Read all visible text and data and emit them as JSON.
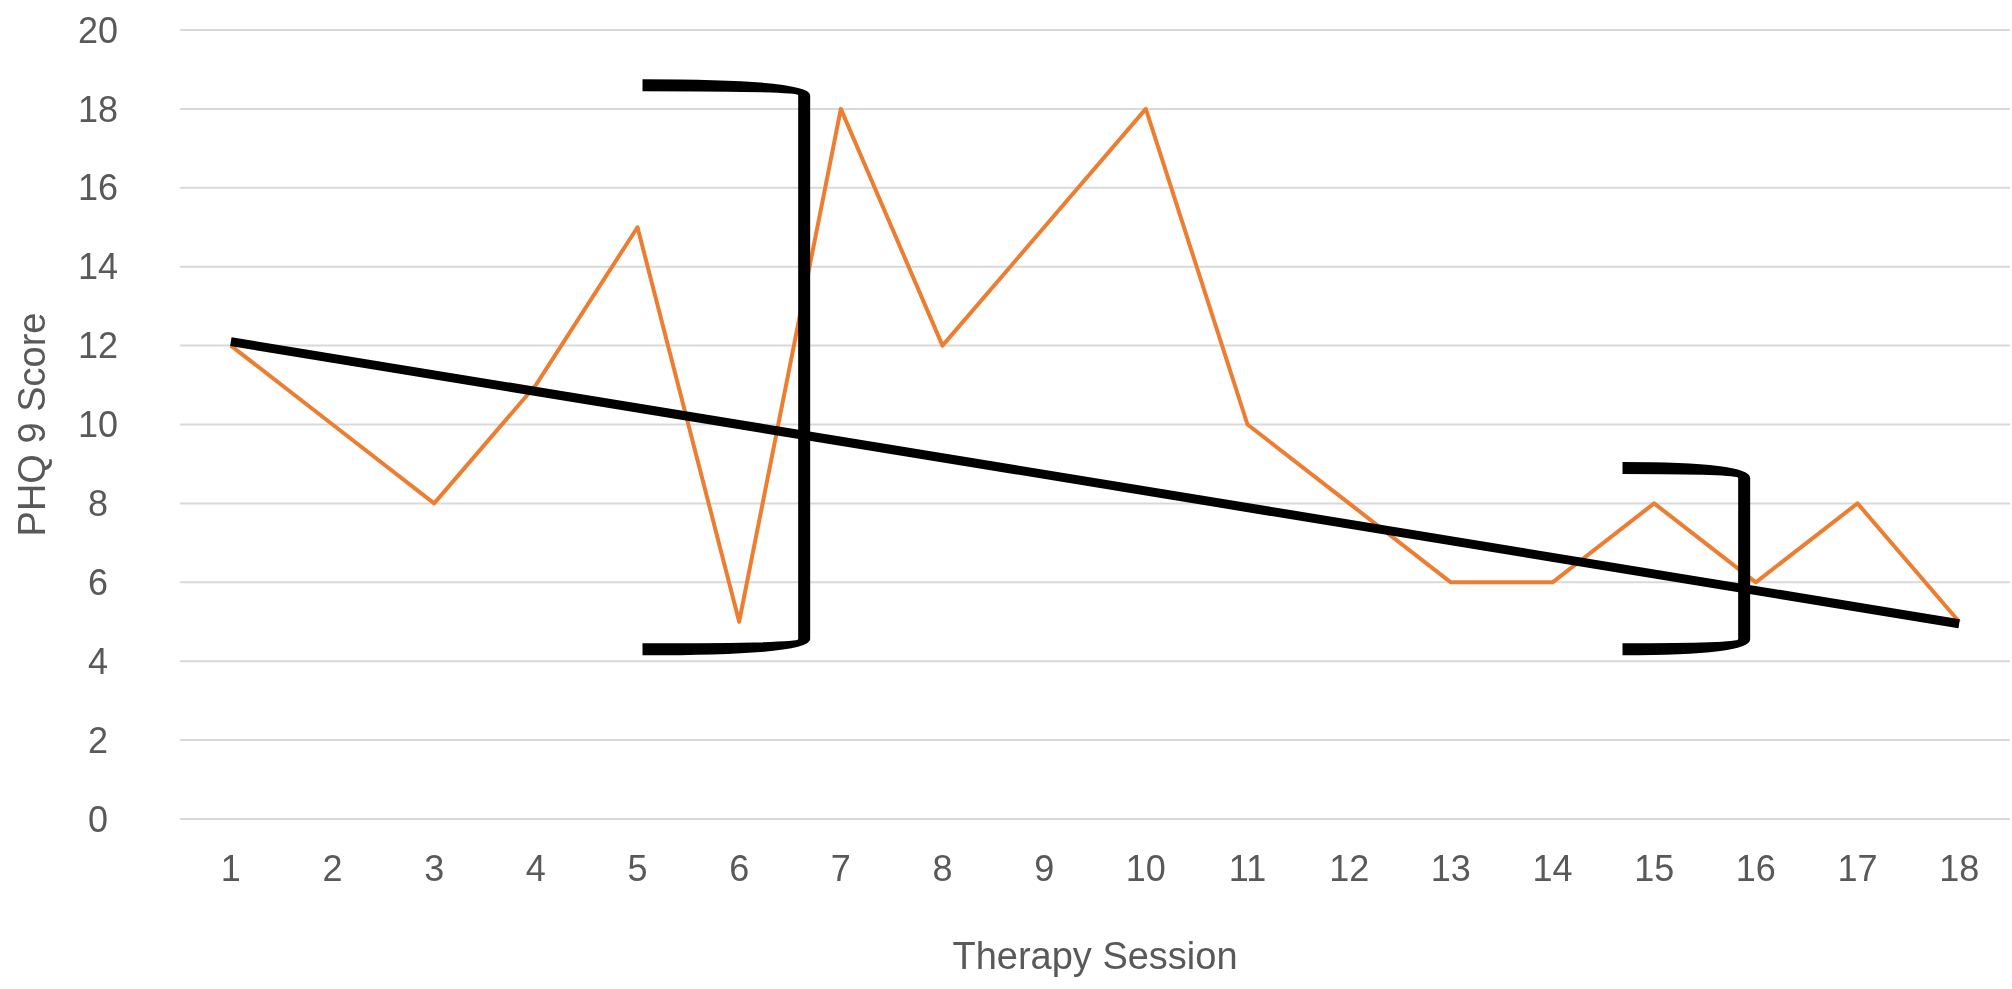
{
  "chart_data": {
    "type": "line",
    "xlabel": "Therapy Session",
    "ylabel": "PHQ 9 Score",
    "categories": [
      "1",
      "2",
      "3",
      "4",
      "5",
      "6",
      "7",
      "8",
      "9",
      "10",
      "11",
      "12",
      "13",
      "14",
      "15",
      "16",
      "17",
      "18"
    ],
    "series": [
      {
        "color": "#ed7d31",
        "values": [
          12,
          10,
          8,
          11,
          15,
          5,
          18,
          12,
          15,
          18,
          10,
          8,
          6,
          6,
          8,
          6,
          8,
          5
        ]
      },
      {
        "color": "#000000",
        "x": [
          "1",
          "18"
        ],
        "values": [
          12.1,
          4.95
        ]
      }
    ],
    "ylim": [
      0,
      20
    ],
    "yticks": [
      0,
      2,
      4,
      6,
      8,
      10,
      12,
      14,
      16,
      18,
      20
    ],
    "grid": "y",
    "marker": "none",
    "line_style": "solid"
  }
}
